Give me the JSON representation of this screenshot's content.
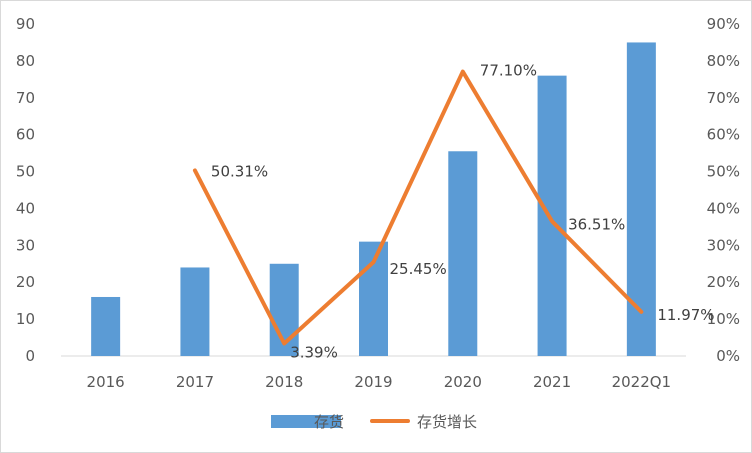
{
  "chart_data": {
    "type": "bar",
    "categories": [
      "2016",
      "2017",
      "2018",
      "2019",
      "2020",
      "2021",
      "2022Q1"
    ],
    "series": [
      {
        "name": "存货",
        "type": "bar",
        "axis": "left",
        "color": "#5b9bd5",
        "values": [
          16,
          24,
          25,
          31,
          55.5,
          76,
          85
        ]
      },
      {
        "name": "存货增长",
        "type": "line",
        "axis": "right",
        "color": "#ed7d31",
        "values": [
          null,
          50.31,
          3.39,
          25.45,
          77.1,
          36.51,
          11.97
        ],
        "labels": [
          "",
          "50.31%",
          "3.39%",
          "25.45%",
          "77.10%",
          "36.51%",
          "11.97%"
        ]
      }
    ],
    "ylim": [
      0,
      90
    ],
    "y_ticks": [
      "0",
      "10",
      "20",
      "30",
      "40",
      "50",
      "60",
      "70",
      "80",
      "90"
    ],
    "y2lim": [
      0,
      90
    ],
    "y2_ticks": [
      "0%",
      "10%",
      "20%",
      "30%",
      "40%",
      "50%",
      "60%",
      "70%",
      "80%",
      "90%"
    ],
    "grid": false,
    "legend": "bottom"
  }
}
